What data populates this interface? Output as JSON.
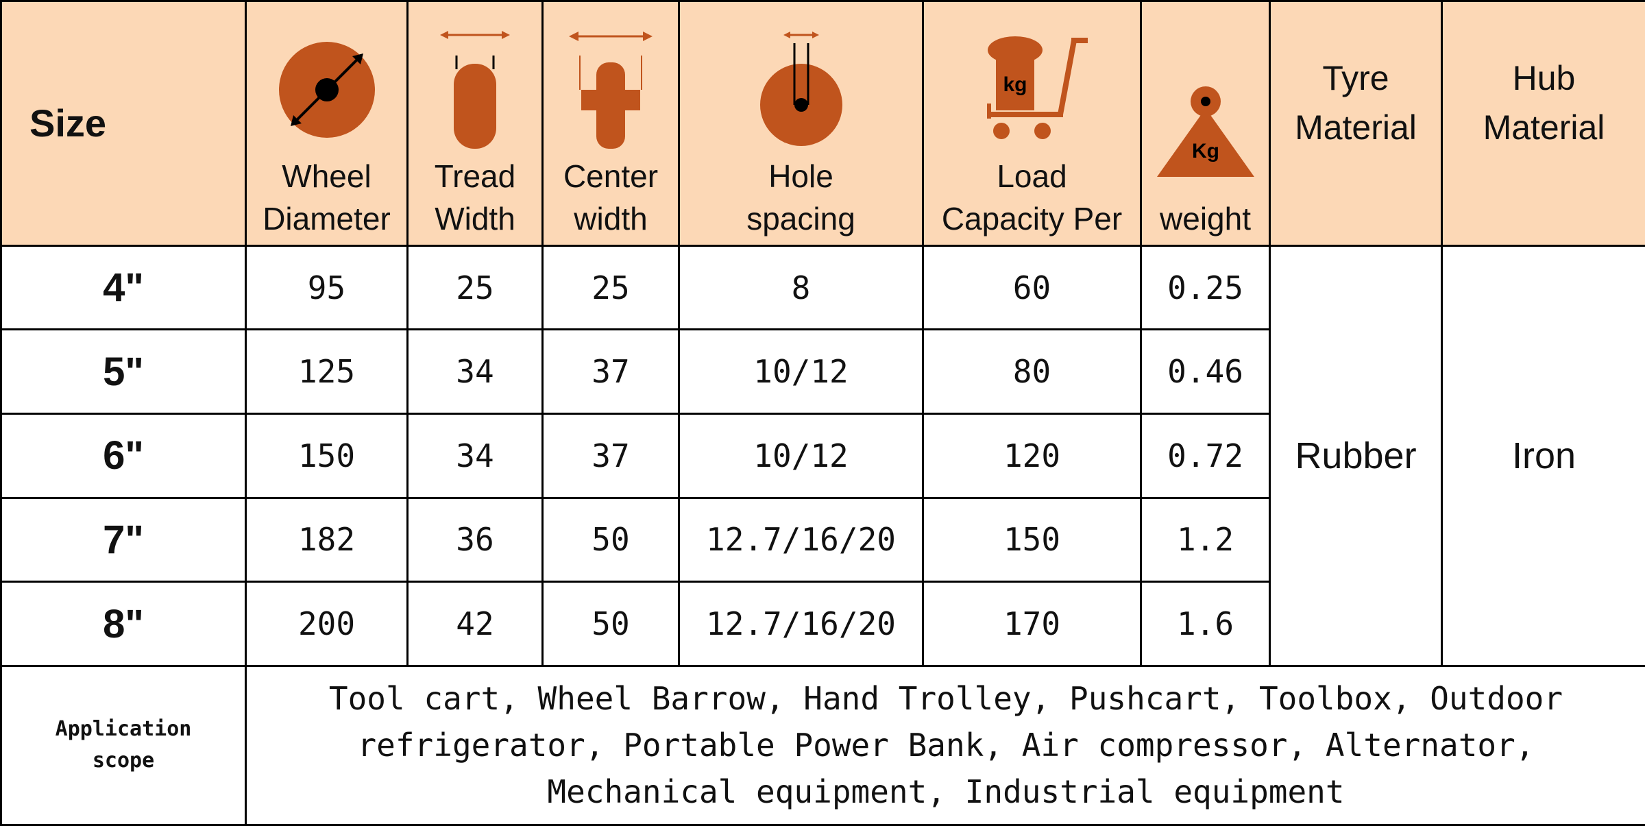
{
  "accent_color": "#c0541d",
  "header_bg": "#fcd8b6",
  "header": {
    "size": "Size",
    "wheel_diameter": "Wheel\nDiameter",
    "tread_width": "Tread\nWidth",
    "center_width": "Center\nwidth",
    "hole_spacing": "Hole\nspacing",
    "load_capacity": "Load\nCapacity Per",
    "weight": "weight",
    "tyre_material": "Tyre\nMaterial",
    "hub_material": "Hub\nMaterial",
    "icons": {
      "wheel_diameter": "wheel-diameter-icon",
      "tread_width": "tread-width-icon",
      "center_width": "center-width-icon",
      "hole_spacing": "hole-spacing-icon",
      "load_capacity": "trolley-load-icon",
      "weight": "weight-icon",
      "load_icon_text": "kg",
      "weight_icon_text": "Kg"
    }
  },
  "rows": [
    {
      "size": "4\"",
      "wheel_diameter": "95",
      "tread_width": "25",
      "center_width": "25",
      "hole_spacing": "8",
      "load_capacity": "60",
      "weight": "0.25"
    },
    {
      "size": "5\"",
      "wheel_diameter": "125",
      "tread_width": "34",
      "center_width": "37",
      "hole_spacing": "10/12",
      "load_capacity": "80",
      "weight": "0.46"
    },
    {
      "size": "6\"",
      "wheel_diameter": "150",
      "tread_width": "34",
      "center_width": "37",
      "hole_spacing": "10/12",
      "load_capacity": "120",
      "weight": "0.72"
    },
    {
      "size": "7\"",
      "wheel_diameter": "182",
      "tread_width": "36",
      "center_width": "50",
      "hole_spacing": "12.7/16/20",
      "load_capacity": "150",
      "weight": "1.2"
    },
    {
      "size": "8\"",
      "wheel_diameter": "200",
      "tread_width": "42",
      "center_width": "50",
      "hole_spacing": "12.7/16/20",
      "load_capacity": "170",
      "weight": "1.6"
    }
  ],
  "tyre_material": "Rubber",
  "hub_material": "Iron",
  "application": {
    "label": "Application\nscope",
    "text": "Tool cart, Wheel Barrow, Hand Trolley, Pushcart, Toolbox, Outdoor refrigerator, Portable Power Bank, Air compressor, Alternator, Mechanical equipment, Industrial equipment"
  }
}
